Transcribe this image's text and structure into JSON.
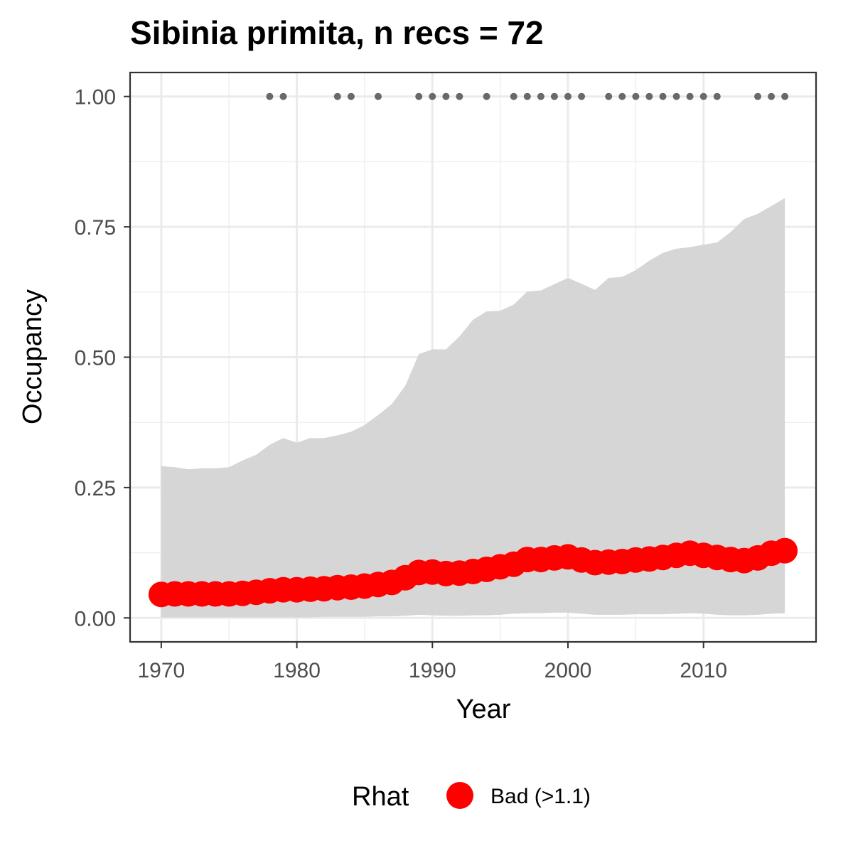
{
  "chart_data": {
    "type": "line",
    "title": "Sibinia primita, n recs = 72",
    "xlabel": "Year",
    "ylabel": "Occupancy",
    "xlim": [
      1967.7,
      1968.3
    ],
    "ylim": [
      -0.046,
      1.046
    ],
    "x_ticks": [
      1970,
      1980,
      1990,
      2000,
      2010
    ],
    "x_tick_labels": [
      "1970",
      "1980",
      "1990",
      "2000",
      "2010"
    ],
    "y_ticks": [
      0,
      0.25,
      0.5,
      0.75,
      1.0
    ],
    "y_tick_labels": [
      "0.00",
      "0.25",
      "0.50",
      "0.75",
      "1.00"
    ],
    "grid": true,
    "legend": {
      "title": "Rhat",
      "position": "bottom",
      "entries": [
        {
          "label": "Bad (>1.1)",
          "color": "#ff0000"
        }
      ]
    },
    "series": [
      {
        "name": "Bad (>1.1)",
        "role": "mean",
        "color": "#ff0000",
        "x": [
          1970,
          1971,
          1972,
          1973,
          1974,
          1975,
          1976,
          1977,
          1978,
          1979,
          1980,
          1981,
          1982,
          1983,
          1984,
          1985,
          1986,
          1987,
          1988,
          1989,
          1990,
          1991,
          1992,
          1993,
          1994,
          1995,
          1996,
          1997,
          1998,
          1999,
          2000,
          2001,
          2002,
          2003,
          2004,
          2005,
          2006,
          2007,
          2008,
          2009,
          2010,
          2011,
          2012,
          2013,
          2014,
          2015,
          2016
        ],
        "y": [
          0.045,
          0.046,
          0.046,
          0.046,
          0.046,
          0.046,
          0.047,
          0.049,
          0.052,
          0.054,
          0.054,
          0.055,
          0.056,
          0.058,
          0.059,
          0.061,
          0.064,
          0.068,
          0.077,
          0.087,
          0.088,
          0.085,
          0.086,
          0.089,
          0.093,
          0.098,
          0.103,
          0.112,
          0.112,
          0.115,
          0.117,
          0.111,
          0.106,
          0.107,
          0.108,
          0.111,
          0.113,
          0.116,
          0.12,
          0.124,
          0.12,
          0.116,
          0.112,
          0.11,
          0.115,
          0.124,
          0.129
        ]
      }
    ],
    "credible_interval": {
      "color": "#d3d3d3",
      "x": [
        1970,
        1971,
        1972,
        1973,
        1974,
        1975,
        1976,
        1977,
        1978,
        1979,
        1980,
        1981,
        1982,
        1983,
        1984,
        1985,
        1986,
        1987,
        1988,
        1989,
        1990,
        1991,
        1992,
        1993,
        1994,
        1995,
        1996,
        1997,
        1998,
        1999,
        2000,
        2001,
        2002,
        2003,
        2004,
        2005,
        2006,
        2007,
        2008,
        2009,
        2010,
        2011,
        2012,
        2013,
        2014,
        2015,
        2016
      ],
      "lower": [
        0.001,
        0.001,
        0.001,
        0.001,
        0.001,
        0.001,
        0.001,
        0.001,
        0.001,
        0.001,
        0.001,
        0.001,
        0.002,
        0.002,
        0.002,
        0.002,
        0.003,
        0.003,
        0.004,
        0.006,
        0.005,
        0.004,
        0.004,
        0.005,
        0.005,
        0.006,
        0.008,
        0.009,
        0.009,
        0.01,
        0.01,
        0.008,
        0.006,
        0.006,
        0.006,
        0.007,
        0.007,
        0.007,
        0.008,
        0.009,
        0.008,
        0.006,
        0.005,
        0.005,
        0.006,
        0.008,
        0.009
      ],
      "upper": [
        0.291,
        0.289,
        0.285,
        0.287,
        0.287,
        0.289,
        0.302,
        0.313,
        0.332,
        0.345,
        0.336,
        0.345,
        0.345,
        0.35,
        0.357,
        0.37,
        0.389,
        0.41,
        0.445,
        0.506,
        0.515,
        0.515,
        0.54,
        0.572,
        0.588,
        0.589,
        0.601,
        0.626,
        0.628,
        0.64,
        0.652,
        0.641,
        0.629,
        0.652,
        0.654,
        0.667,
        0.685,
        0.7,
        0.708,
        0.711,
        0.716,
        0.72,
        0.74,
        0.765,
        0.775,
        0.79,
        0.805
      ]
    },
    "records": {
      "color": "#696969",
      "y": 1.0,
      "x": [
        1978,
        1979,
        1983,
        1984,
        1986,
        1989,
        1990,
        1991,
        1992,
        1994,
        1996,
        1997,
        1998,
        1999,
        2000,
        2001,
        2003,
        2004,
        2005,
        2006,
        2007,
        2008,
        2009,
        2010,
        2011,
        2014,
        2015,
        2016
      ]
    }
  }
}
